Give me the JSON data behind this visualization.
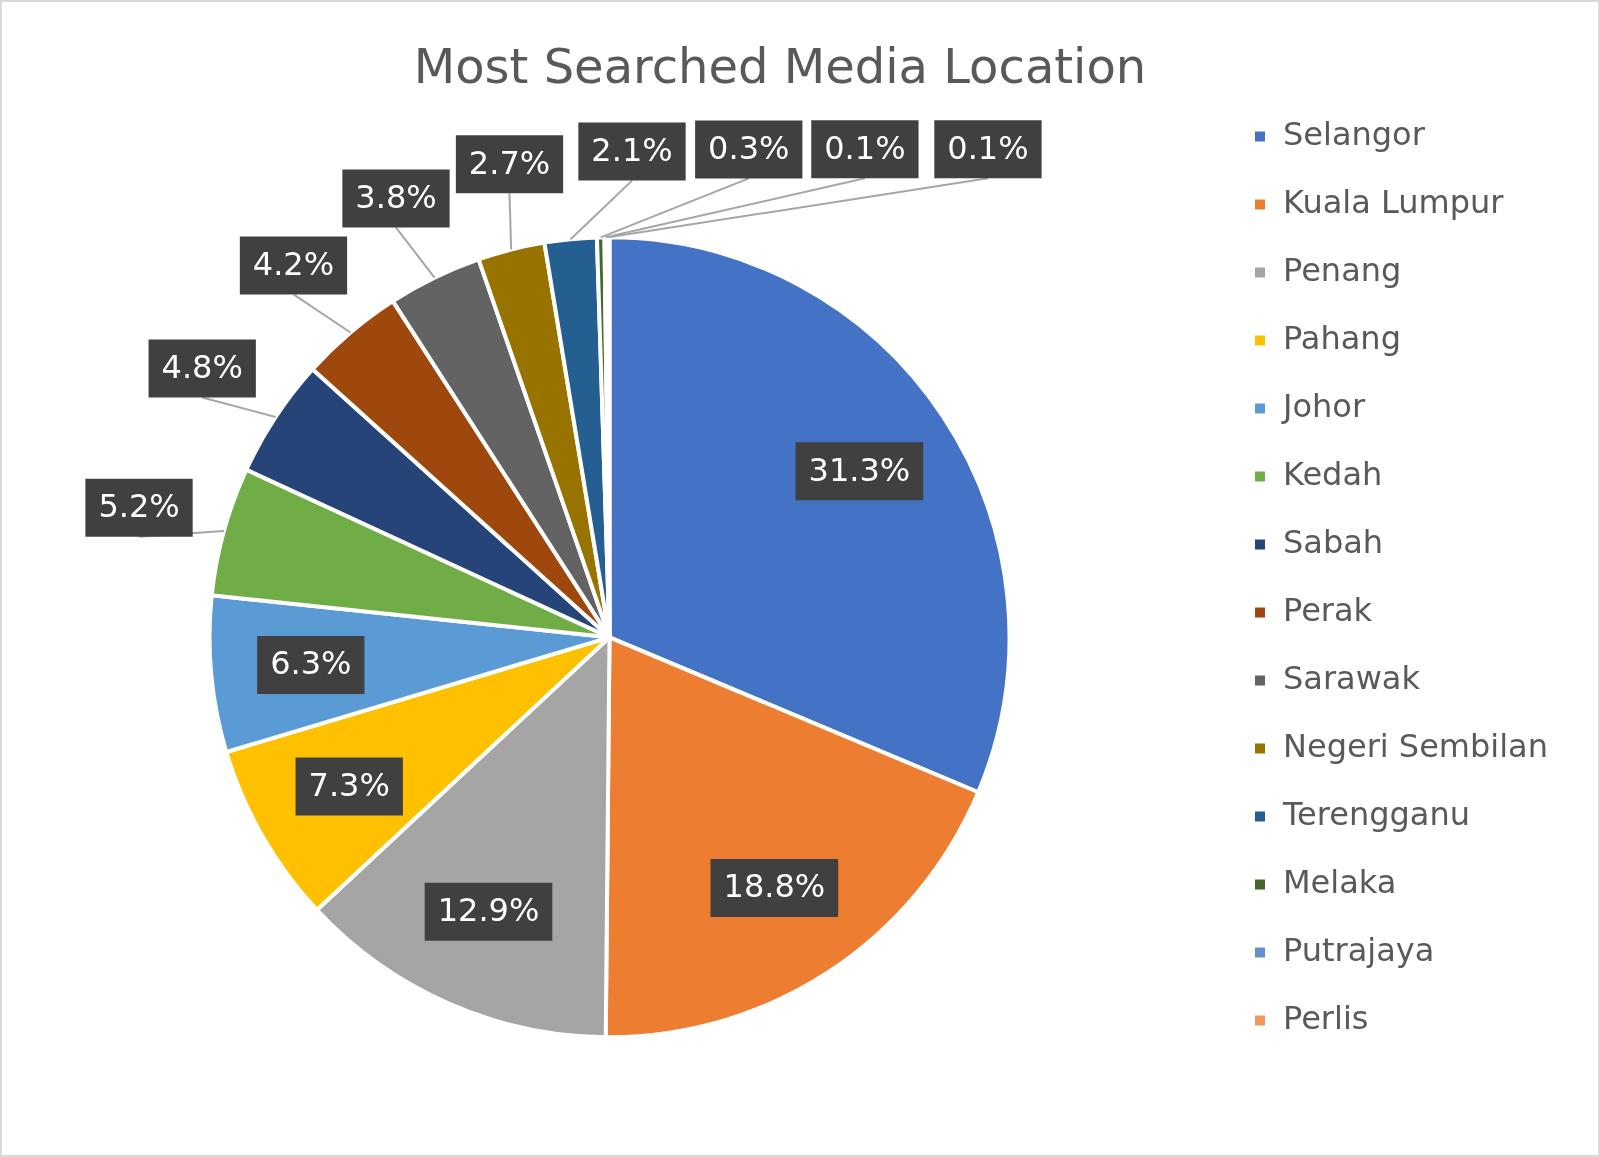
{
  "chart_data": {
    "type": "pie",
    "title": "Most Searched Media Location",
    "categories": [
      "Selangor",
      "Kuala Lumpur",
      "Penang",
      "Pahang",
      "Johor",
      "Kedah",
      "Sabah",
      "Perak",
      "Sarawak",
      "Negeri Sembilan",
      "Terengganu",
      "Melaka",
      "Putrajaya",
      "Perlis"
    ],
    "values": [
      31.3,
      18.8,
      12.9,
      7.3,
      6.3,
      5.2,
      4.8,
      4.2,
      3.8,
      2.7,
      2.1,
      0.3,
      0.1,
      0.1
    ],
    "colors": [
      "#4472c4",
      "#ed7d31",
      "#a5a5a5",
      "#ffc000",
      "#5b9bd5",
      "#70ad47",
      "#264478",
      "#9e480e",
      "#636363",
      "#997300",
      "#255e91",
      "#43682b",
      "#698ed0",
      "#f1975a"
    ],
    "value_labels": [
      "31.3%",
      "18.8%",
      "12.9%",
      "7.3%",
      "6.3%",
      "5.2%",
      "4.8%",
      "4.2%",
      "3.8%",
      "2.7%",
      "2.1%",
      "0.3%",
      "0.1%",
      "0.1%"
    ],
    "legend": "right"
  }
}
